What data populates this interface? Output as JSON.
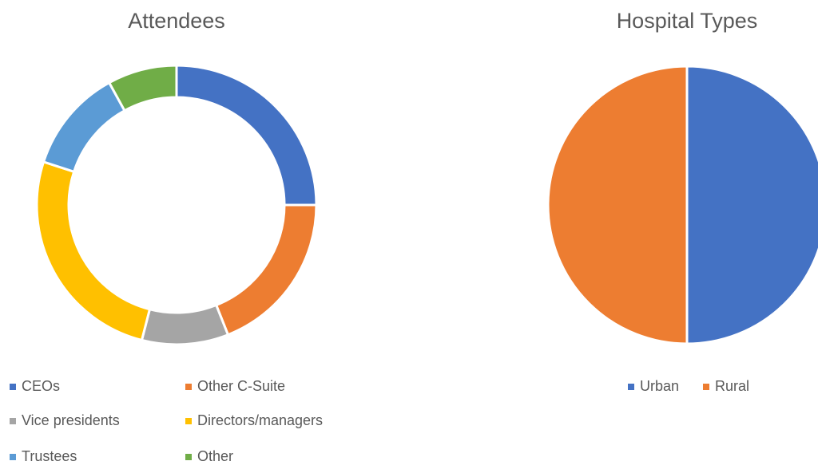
{
  "chart_data": [
    {
      "type": "pie",
      "donut": true,
      "title": "Attendees",
      "categories": [
        "CEOs",
        "Other C-Suite",
        "Vice presidents",
        "Directors/managers",
        "Trustees",
        "Other"
      ],
      "values": [
        25,
        19,
        10,
        26,
        12,
        8
      ],
      "colors": [
        "#4472c4",
        "#ed7d31",
        "#a5a5a5",
        "#ffc000",
        "#5b9bd5",
        "#70ad47"
      ],
      "legend": "bottom"
    },
    {
      "type": "pie",
      "donut": false,
      "title": "Hospital Types",
      "categories": [
        "Urban",
        "Rural"
      ],
      "values": [
        50,
        50
      ],
      "colors": [
        "#4472c4",
        "#ed7d31"
      ],
      "legend": "bottom"
    }
  ]
}
